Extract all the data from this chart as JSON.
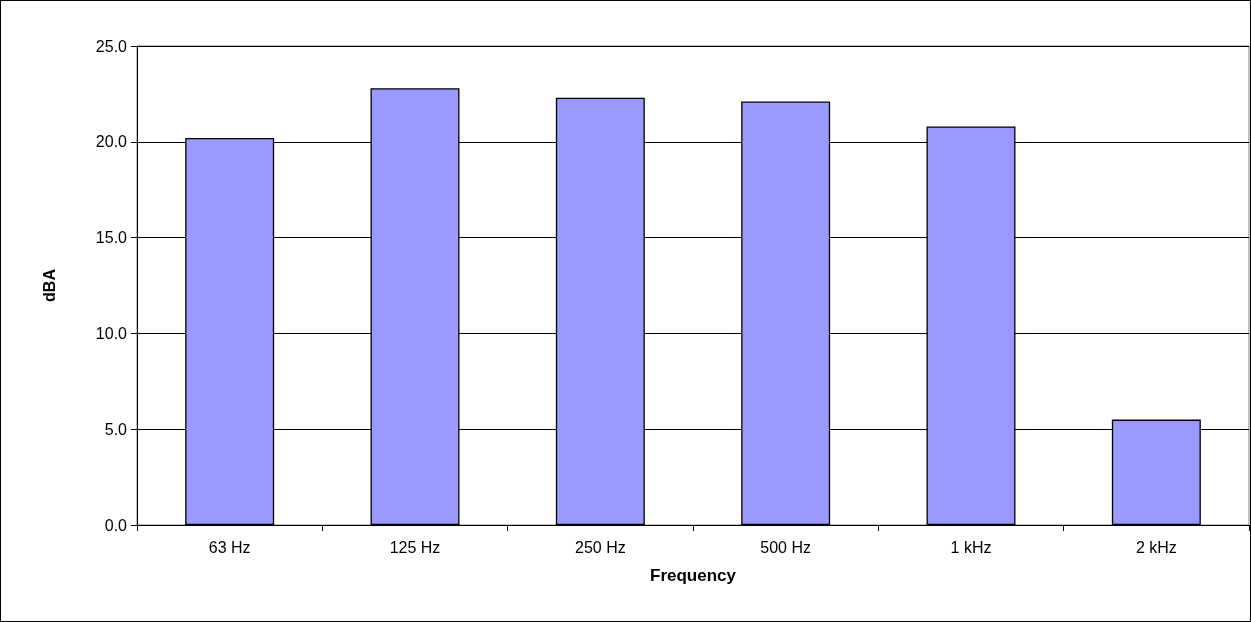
{
  "chart_data": {
    "type": "bar",
    "xlabel": "Frequency",
    "ylabel": "dBA",
    "categories": [
      "63 Hz",
      "125 Hz",
      "250 Hz",
      "500 Hz",
      "1 kHz",
      "2 kHz"
    ],
    "values": [
      20.2,
      22.8,
      22.3,
      22.1,
      20.8,
      5.5
    ],
    "color": "#9999ff",
    "ylim": [
      0,
      25
    ],
    "yticks": [
      {
        "value": 0,
        "label": "0.0"
      },
      {
        "value": 5,
        "label": "5.0"
      },
      {
        "value": 10,
        "label": "10.0"
      },
      {
        "value": 15,
        "label": "15.0"
      },
      {
        "value": 20,
        "label": "20.0"
      },
      {
        "value": 25,
        "label": "25.0"
      }
    ],
    "grid": "y"
  }
}
